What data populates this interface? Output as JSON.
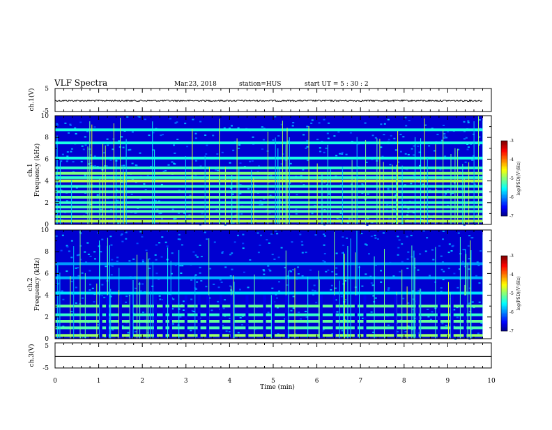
{
  "header": {
    "title": "VLF Spectra",
    "date": "Mar.23, 2018",
    "station": "station=HUS",
    "start_ut": "start  UT =  5 : 30 : 2"
  },
  "chart_data": [
    {
      "type": "line",
      "panel": "ch1-waveform",
      "ylabel": "ch.1(V)",
      "ylim": [
        -5,
        5
      ],
      "ytick_labels": [
        "5",
        "-5"
      ],
      "xlim": [
        0,
        10
      ],
      "series_level": -0.3,
      "trace_end_min": 9.8
    },
    {
      "type": "heatmap",
      "panel": "ch1-spectrogram",
      "ylabel_top": "ch.1",
      "ylabel": "Frequency (kHz)",
      "ylim": [
        0,
        10
      ],
      "ytick_labels": [
        "0",
        "2",
        "4",
        "6",
        "8",
        "10"
      ],
      "xlim": [
        0,
        10
      ],
      "data_end_min": 9.8,
      "colorbar": {
        "label": "log(PSD)(V²/Hz)",
        "range": [
          -7,
          -3
        ],
        "tick_labels": [
          "-3",
          "-4",
          "-5",
          "-6",
          "-7"
        ]
      },
      "bands_khz": [
        0.3,
        0.7,
        1.2,
        1.6,
        2.0,
        2.5,
        3.0,
        3.5,
        4.0,
        4.3,
        4.7,
        5.2,
        6.1,
        7.5,
        8.7
      ],
      "band_levels": [
        -4.8,
        -5.0,
        -5.2,
        -5.2,
        -5.3,
        -5.1,
        -5.2,
        -5.3,
        -4.8,
        -5.3,
        -5.0,
        -5.3,
        -5.4,
        -5.4,
        -5.4
      ]
    },
    {
      "type": "heatmap",
      "panel": "ch2-spectrogram",
      "ylabel_top": "ch.2",
      "ylabel": "Frequency (kHz)",
      "ylim": [
        0,
        10
      ],
      "ytick_labels": [
        "0",
        "2",
        "4",
        "6",
        "8",
        "10"
      ],
      "xlim": [
        0,
        10
      ],
      "data_end_min": 9.8,
      "colorbar": {
        "label": "log(PSD)(V²/Hz)",
        "range": [
          -7,
          -3
        ],
        "tick_labels": [
          "-3",
          "-4",
          "-5",
          "-6",
          "-7"
        ]
      },
      "bands_khz": [
        0.3,
        1.0,
        1.6,
        2.2,
        3.0,
        4.2,
        5.6,
        6.9
      ],
      "band_levels": [
        -4.9,
        -5.2,
        -5.1,
        -5.3,
        -5.1,
        -5.6,
        -5.8,
        -5.9
      ],
      "gaps_min": [
        1.05,
        1.2,
        1.5,
        1.75,
        2.3,
        2.5,
        2.65,
        3.0,
        3.3,
        3.5,
        3.8,
        4.05,
        4.4,
        4.8,
        5.0,
        5.3,
        6.1,
        6.4,
        6.9,
        7.1,
        7.8,
        8.3,
        8.8,
        9.1,
        9.4
      ]
    },
    {
      "type": "line",
      "panel": "ch3-waveform",
      "ylabel": "ch.3(V)",
      "ylim": [
        -5,
        5
      ],
      "ytick_labels": [
        "5",
        "-5"
      ],
      "xlim": [
        0,
        10
      ],
      "series_level": -0.4,
      "xlabel": "Time  (min)",
      "xtick_labels": [
        "0",
        "1",
        "2",
        "3",
        "4",
        "5",
        "6",
        "7",
        "8",
        "9",
        "10"
      ]
    }
  ]
}
